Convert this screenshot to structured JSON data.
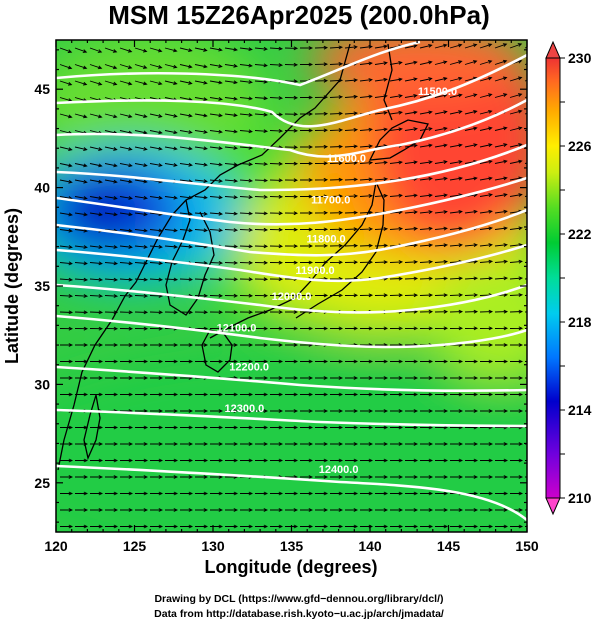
{
  "chart_data": {
    "type": "heatmap",
    "title": "MSM 15Z26Apr2025 (200.0hPa)",
    "xlabel": "Longitude (degrees)",
    "ylabel": "Latitude  (degrees)",
    "xlim": [
      120,
      150
    ],
    "ylim": [
      22.5,
      47.5
    ],
    "x_ticks": [
      "120",
      "125",
      "130",
      "135",
      "140",
      "145",
      "150"
    ],
    "y_ticks": [
      "25",
      "30",
      "35",
      "40",
      "45"
    ],
    "colorbar": {
      "min": 210,
      "max": 230,
      "tick_labels": [
        "230",
        "226",
        "222",
        "218",
        "214",
        "210"
      ],
      "colors": [
        "#ff00cc",
        "#7a00dd",
        "#0000cc",
        "#0066ff",
        "#00ccff",
        "#00e0b0",
        "#00cc44",
        "#33dd33",
        "#99ee33",
        "#eeee00",
        "#ffcc00",
        "#ff8800",
        "#ff5522",
        "#ee3333"
      ]
    },
    "contour_levels": [
      {
        "label": "11500.0",
        "lon": 144.3,
        "lat": 44.7
      },
      {
        "label": "11600.0",
        "lon": 138.5,
        "lat": 41.3
      },
      {
        "label": "11700.0",
        "lon": 137.5,
        "lat": 39.2
      },
      {
        "label": "11800.0",
        "lon": 137.2,
        "lat": 37.2
      },
      {
        "label": "11900.0",
        "lon": 136.5,
        "lat": 35.6
      },
      {
        "label": "12000.0",
        "lon": 135.0,
        "lat": 34.3
      },
      {
        "label": "12100.0",
        "lon": 131.5,
        "lat": 32.7
      },
      {
        "label": "12200.0",
        "lon": 132.3,
        "lat": 30.7
      },
      {
        "label": "12300.0",
        "lon": 132.0,
        "lat": 28.6
      },
      {
        "label": "12400.0",
        "lon": 138.0,
        "lat": 25.5
      }
    ],
    "temperature_regions": [
      {
        "name": "cold-core",
        "lon": 124.5,
        "lat": 39.0,
        "value": 213.5
      },
      {
        "name": "warm-core",
        "lon": 143.5,
        "lat": 40.5,
        "value": 229.0
      }
    ],
    "wind_direction": "westerly"
  },
  "credits": {
    "line1": "Drawing by DCL (https://www.gfd−dennou.org/library/dcl/)",
    "line2": "Data from http://database.rish.kyoto−u.ac.jp/arch/jmadata/"
  },
  "colors": {
    "contour": "#ffffff",
    "arrow": "#000000",
    "coast": "#000000"
  }
}
